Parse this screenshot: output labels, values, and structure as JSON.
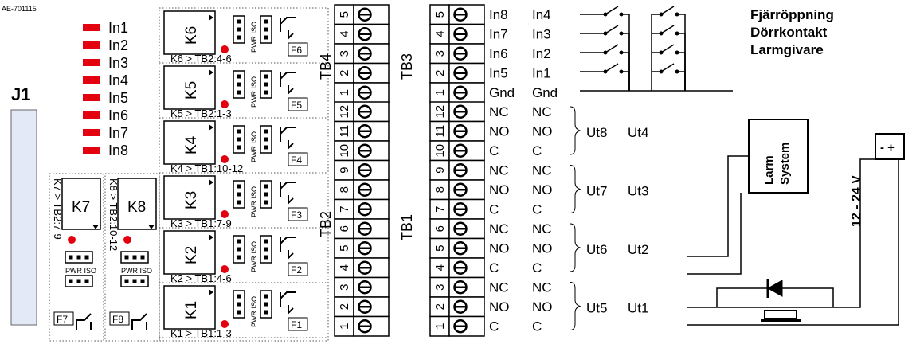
{
  "drawing_id": "AE-701115",
  "connector": "J1",
  "leds": [
    "In1",
    "In2",
    "In3",
    "In4",
    "In5",
    "In6",
    "In7",
    "In8"
  ],
  "relays_side": [
    {
      "name": "K6",
      "caption": "K6 > TB2:4-6",
      "fuse": "F6"
    },
    {
      "name": "K5",
      "caption": "K5 > TB2:1-3",
      "fuse": "F5"
    },
    {
      "name": "K4",
      "caption": "K4 > TB1:10-12",
      "fuse": "F4"
    },
    {
      "name": "K3",
      "caption": "K3 > TB1:7-9",
      "fuse": "F3"
    },
    {
      "name": "K2",
      "caption": "K2 > TB1:4-6",
      "fuse": "F2"
    },
    {
      "name": "K1",
      "caption": "K1 > TB1:1-3",
      "fuse": "F1"
    }
  ],
  "relays_left": [
    {
      "name": "K7",
      "caption": "K7 > TB2:7-9",
      "fuse": "F7"
    },
    {
      "name": "K8",
      "caption": "K8 > TB2:10-12",
      "fuse": "F8"
    }
  ],
  "jumper_label": "PWR ISO",
  "tb4": {
    "label": "TB4",
    "numbers": [
      "5",
      "4",
      "3",
      "2",
      "1"
    ]
  },
  "tb2": {
    "label": "TB2",
    "numbers": [
      "12",
      "11",
      "10",
      "9",
      "8",
      "7",
      "6",
      "5",
      "4",
      "3",
      "2",
      "1"
    ]
  },
  "tb3": {
    "label": "TB3",
    "numbers": [
      "5",
      "4",
      "3",
      "2",
      "1"
    ]
  },
  "tb1": {
    "label": "TB1",
    "numbers": [
      "12",
      "11",
      "10",
      "9",
      "8",
      "7",
      "6",
      "5",
      "4",
      "3",
      "2",
      "1"
    ]
  },
  "inputs_col1": [
    "In8",
    "In7",
    "In6",
    "In5",
    "Gnd"
  ],
  "inputs_col2": [
    "In4",
    "In3",
    "In2",
    "In1",
    "Gnd"
  ],
  "contacts": [
    "NC",
    "NO",
    "C",
    "NC",
    "NO",
    "C",
    "NC",
    "NO",
    "C",
    "NC",
    "NO",
    "C"
  ],
  "outputs_col1": [
    "Ut8",
    "Ut7",
    "Ut6",
    "Ut5"
  ],
  "outputs_col2": [
    "Ut4",
    "Ut3",
    "Ut2",
    "Ut1"
  ],
  "legend": [
    "Fjärröppning",
    "Dörrkontakt",
    "Larmgivare"
  ],
  "larm_system": [
    "Larm",
    "System"
  ],
  "voltage": "12 - 24 V",
  "psu_symbol": "- +"
}
